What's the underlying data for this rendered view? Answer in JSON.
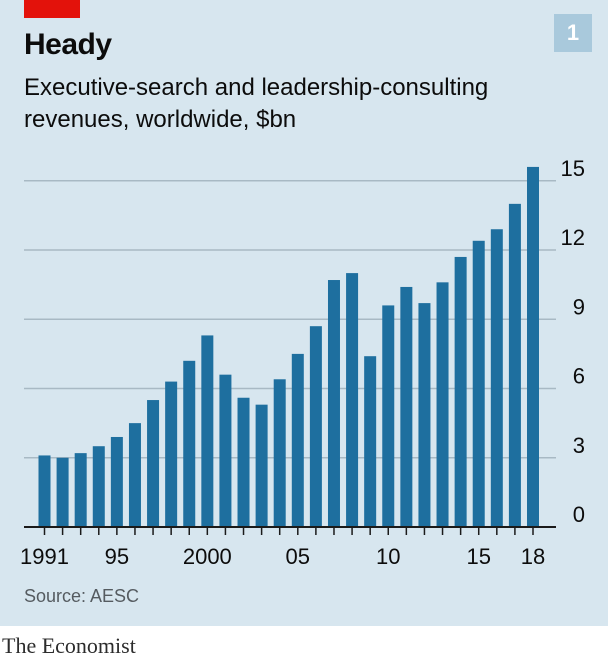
{
  "header": {
    "title": "Heady",
    "subtitle": "Executive-search and leadership-consulting revenues, worldwide, $bn",
    "chart_number": "1"
  },
  "footer": {
    "source": "Source: AESC",
    "brand": "The Economist"
  },
  "colors": {
    "bar": "#1e6f9f",
    "grid": "#a8b9c4",
    "panel": "#d7e6ef",
    "accent": "#e3120b"
  },
  "chart_data": {
    "type": "bar",
    "title": "Heady",
    "subtitle": "Executive-search and leadership-consulting revenues, worldwide, $bn",
    "categories": [
      "1991",
      "1992",
      "1993",
      "1994",
      "1995",
      "1996",
      "1997",
      "1998",
      "1999",
      "2000",
      "2001",
      "2002",
      "2003",
      "2004",
      "2005",
      "2006",
      "2007",
      "2008",
      "2009",
      "2010",
      "2011",
      "2012",
      "2013",
      "2014",
      "2015",
      "2016",
      "2017",
      "2018"
    ],
    "values": [
      3.1,
      3.0,
      3.2,
      3.5,
      3.9,
      4.5,
      5.5,
      6.3,
      7.2,
      8.3,
      6.6,
      5.6,
      5.3,
      6.4,
      7.5,
      8.7,
      10.7,
      11.0,
      7.4,
      9.6,
      10.4,
      9.7,
      10.6,
      11.7,
      12.4,
      12.9,
      14.0,
      15.6
    ],
    "x_tick_labels": [
      {
        "category": "1991",
        "label": "1991"
      },
      {
        "category": "1995",
        "label": "95"
      },
      {
        "category": "2000",
        "label": "2000"
      },
      {
        "category": "2005",
        "label": "05"
      },
      {
        "category": "2010",
        "label": "10"
      },
      {
        "category": "2015",
        "label": "15"
      },
      {
        "category": "2018",
        "label": "18"
      }
    ],
    "y_ticks": [
      0,
      3,
      6,
      9,
      12,
      15
    ],
    "ylim": [
      0,
      15.9
    ],
    "xlabel": "",
    "ylabel": "",
    "grid": true,
    "y_axis_side": "right"
  }
}
